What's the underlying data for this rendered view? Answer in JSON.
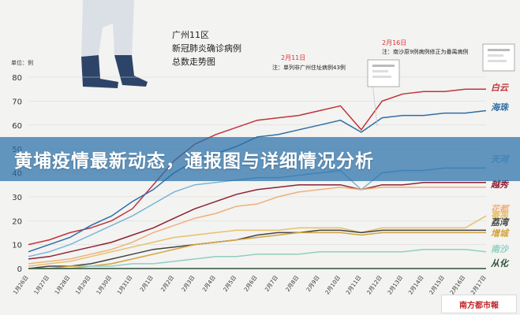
{
  "banner": {
    "headline": "黄埔疫情最新动态，通报图与详细情况分析"
  },
  "source_logo": "南方都市報",
  "chart_data": {
    "type": "line",
    "title_lines": [
      "广州11区",
      "新冠肺炎确诊病例",
      "总数走势图"
    ],
    "ylabel": "单位：例",
    "ylim": [
      0,
      80
    ],
    "yticks": [
      0,
      10,
      20,
      30,
      40,
      50,
      60,
      70,
      80
    ],
    "grid": true,
    "legend": "right-end labels",
    "x": [
      "1月26日",
      "1月27日",
      "1月28日",
      "1月29日",
      "1月30日",
      "1月31日",
      "2月1日",
      "2月2日",
      "2月3日",
      "2月4日",
      "2月5日",
      "2月6日",
      "2月7日",
      "2月8日",
      "2月9日",
      "2月10日",
      "2月11日",
      "2月12日",
      "2月13日",
      "2月14日",
      "2月15日",
      "2月16日",
      "2月17日"
    ],
    "annotations": [
      {
        "date_label": "2月11日",
        "text": "注：单列非广州住址病例43例"
      },
      {
        "date_label": "2月16日",
        "text": "注：南沙原9例病例修正为番禺病例"
      }
    ],
    "series": [
      {
        "name": "白云",
        "color": "#c0343c",
        "values": [
          10,
          12,
          15,
          17,
          20,
          25,
          35,
          45,
          52,
          56,
          59,
          62,
          63,
          64,
          66,
          68,
          58,
          70,
          73,
          74,
          74,
          75,
          75
        ]
      },
      {
        "name": "海珠",
        "color": "#2f6ea6",
        "values": [
          7,
          10,
          13,
          18,
          22,
          28,
          33,
          40,
          45,
          48,
          51,
          55,
          56,
          58,
          60,
          62,
          57,
          63,
          64,
          64,
          65,
          65,
          66
        ]
      },
      {
        "name": "天河",
        "color": "#7ab4d9",
        "values": [
          5,
          7,
          10,
          14,
          18,
          22,
          27,
          32,
          35,
          36,
          37,
          38,
          38,
          39,
          40,
          41,
          33,
          40,
          41,
          41,
          42,
          42,
          42
        ]
      },
      {
        "name": "越秀",
        "color": "#8c2235",
        "values": [
          4,
          5,
          7,
          9,
          11,
          14,
          17,
          21,
          25,
          28,
          31,
          33,
          34,
          35,
          35,
          35,
          33,
          35,
          35,
          36,
          36,
          36,
          36
        ]
      },
      {
        "name": "花都",
        "color": "#f0b07a",
        "values": [
          2,
          3,
          4,
          6,
          8,
          11,
          15,
          18,
          21,
          23,
          26,
          27,
          30,
          32,
          33,
          34,
          33,
          34,
          34,
          34,
          34,
          34,
          34
        ]
      },
      {
        "name": "番禺",
        "color": "#e8c06a",
        "values": [
          1,
          2,
          3,
          5,
          7,
          9,
          11,
          13,
          14,
          15,
          16,
          16,
          16,
          17,
          17,
          17,
          15,
          17,
          17,
          17,
          17,
          17,
          22
        ]
      },
      {
        "name": "荔湾",
        "color": "#444444",
        "values": [
          0,
          1,
          1,
          2,
          4,
          6,
          8,
          9,
          10,
          11,
          12,
          14,
          15,
          15,
          16,
          16,
          15,
          16,
          16,
          16,
          16,
          16,
          16
        ]
      },
      {
        "name": "增城",
        "color": "#d3a33a",
        "values": [
          0,
          0,
          1,
          1,
          2,
          4,
          6,
          8,
          10,
          11,
          12,
          13,
          14,
          15,
          15,
          15,
          14,
          15,
          15,
          15,
          15,
          15,
          15
        ]
      },
      {
        "name": "南沙",
        "color": "#8fcfc0",
        "values": [
          0,
          0,
          0,
          1,
          1,
          2,
          2,
          3,
          4,
          5,
          5,
          6,
          6,
          6,
          7,
          7,
          7,
          7,
          7,
          8,
          8,
          8,
          7
        ]
      },
      {
        "name": "从化",
        "color": "#2e4f3a",
        "values": [
          0,
          0,
          0,
          0,
          0,
          0,
          0,
          0,
          0,
          0,
          0,
          0,
          0,
          0,
          0,
          0,
          0,
          0,
          0,
          0,
          0,
          0,
          0
        ]
      }
    ]
  }
}
